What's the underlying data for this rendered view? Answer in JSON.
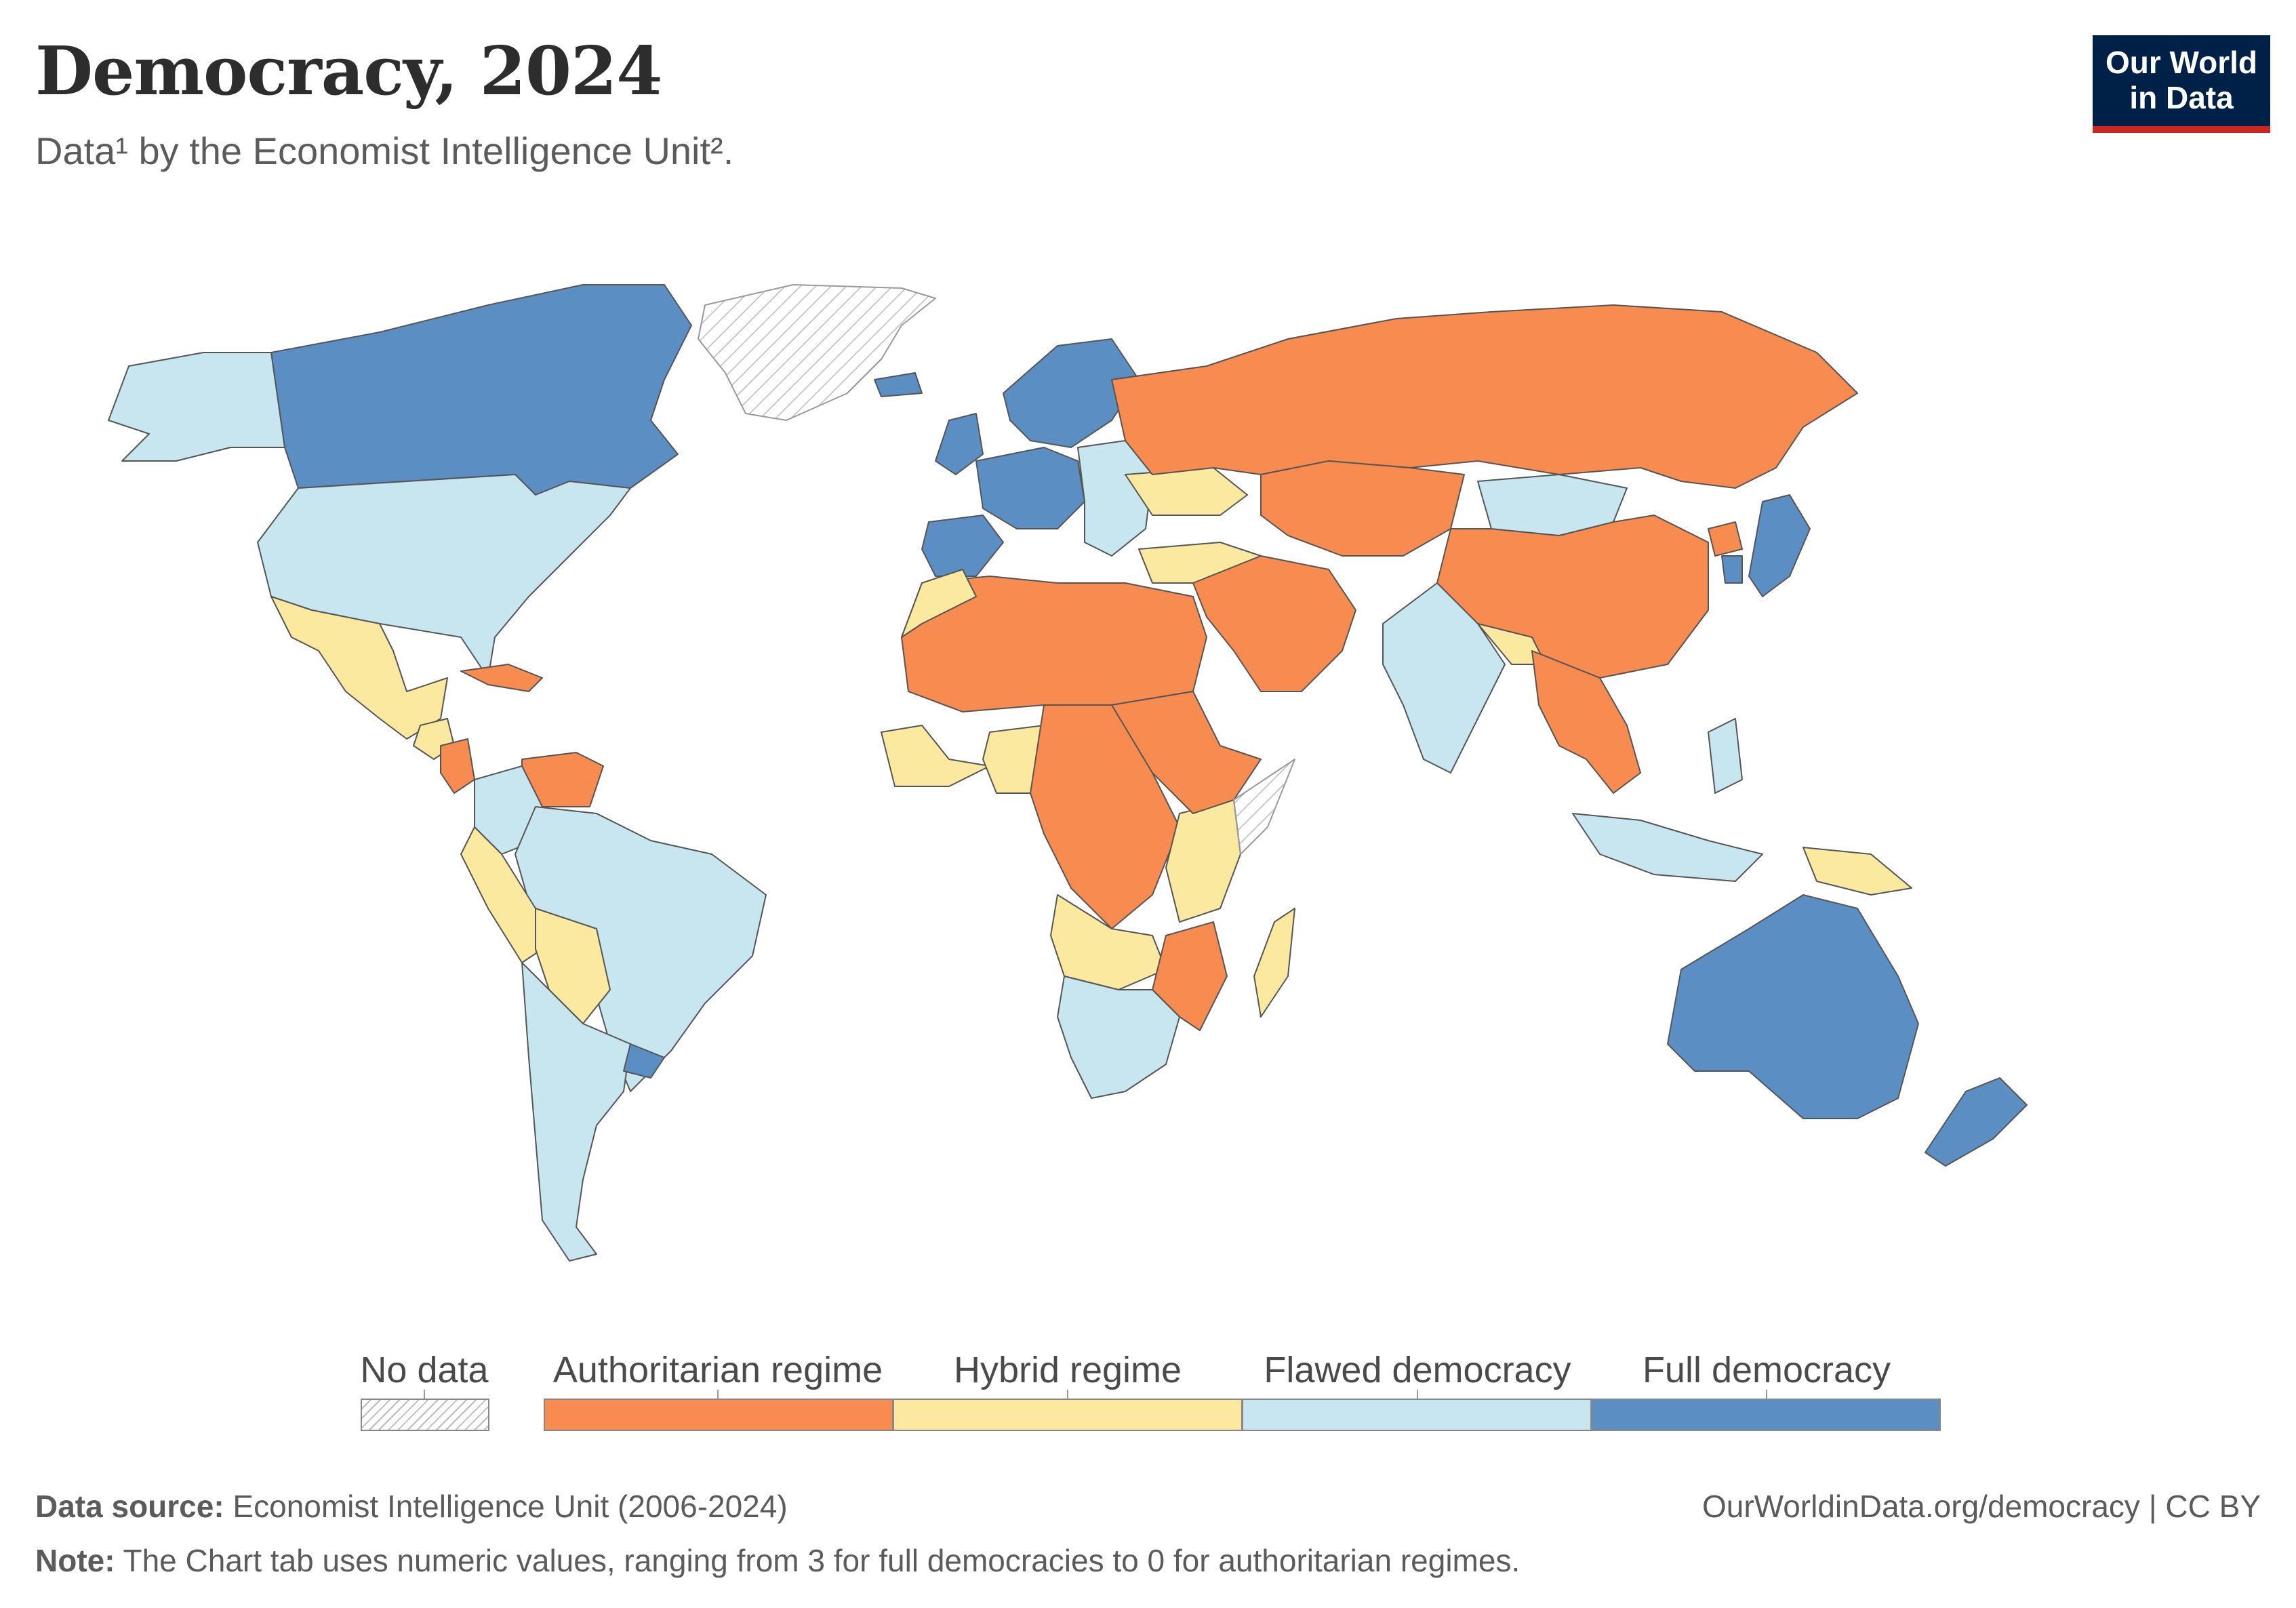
{
  "header": {
    "title": "Democracy, 2024",
    "subtitle": "Data¹ by the Economist Intelligence Unit².",
    "logo_line1": "Our World",
    "logo_line2": "in Data"
  },
  "colors": {
    "no_data": "#ffffff",
    "authoritarian": "#f78b50",
    "hybrid": "#fbe9a0",
    "flawed": "#c8e6f0",
    "full": "#5b8fc4",
    "border": "#555555",
    "hatch": "#bbbbbb"
  },
  "legend": [
    {
      "key": "no_data",
      "label": "No data"
    },
    {
      "key": "authoritarian",
      "label": "Authoritarian regime"
    },
    {
      "key": "hybrid",
      "label": "Hybrid regime"
    },
    {
      "key": "flawed",
      "label": "Flawed democracy"
    },
    {
      "key": "full",
      "label": "Full democracy"
    }
  ],
  "footer": {
    "source_label": "Data source:",
    "source_text": " Economist Intelligence Unit (2006-2024)",
    "note_label": "Note:",
    "note_text": " The Chart tab uses numeric values, ranging from 3 for full democracies to 0 for authoritarian regimes.",
    "url": "OurWorldinData.org/democracy | CC BY"
  },
  "regions": [
    {
      "id": "greenland",
      "regime": "no_data"
    },
    {
      "id": "canada",
      "regime": "full"
    },
    {
      "id": "alaska",
      "regime": "flawed"
    },
    {
      "id": "usa",
      "regime": "flawed"
    },
    {
      "id": "mexico",
      "regime": "hybrid"
    },
    {
      "id": "cuba",
      "regime": "authoritarian"
    },
    {
      "id": "central-america",
      "regime": "hybrid"
    },
    {
      "id": "nicaragua",
      "regime": "authoritarian"
    },
    {
      "id": "venezuela",
      "regime": "authoritarian"
    },
    {
      "id": "colombia",
      "regime": "flawed"
    },
    {
      "id": "brazil",
      "regime": "flawed"
    },
    {
      "id": "peru",
      "regime": "hybrid"
    },
    {
      "id": "bolivia",
      "regime": "hybrid"
    },
    {
      "id": "chile-argentina",
      "regime": "flawed"
    },
    {
      "id": "uruguay",
      "regime": "full"
    },
    {
      "id": "iceland",
      "regime": "full"
    },
    {
      "id": "uk",
      "regime": "full"
    },
    {
      "id": "scandinavia",
      "regime": "full"
    },
    {
      "id": "western-europe",
      "regime": "full"
    },
    {
      "id": "iberia",
      "regime": "full"
    },
    {
      "id": "central-europe",
      "regime": "flawed"
    },
    {
      "id": "ukraine",
      "regime": "hybrid"
    },
    {
      "id": "turkey",
      "regime": "hybrid"
    },
    {
      "id": "russia",
      "regime": "authoritarian"
    },
    {
      "id": "central-asia",
      "regime": "authoritarian"
    },
    {
      "id": "china",
      "regime": "authoritarian"
    },
    {
      "id": "mongolia",
      "regime": "flawed"
    },
    {
      "id": "middle-east",
      "regime": "authoritarian"
    },
    {
      "id": "india",
      "regime": "flawed"
    },
    {
      "id": "bangladesh-nepal",
      "regime": "hybrid"
    },
    {
      "id": "southeast-asia",
      "regime": "authoritarian"
    },
    {
      "id": "japan",
      "regime": "full"
    },
    {
      "id": "korea",
      "regime": "full"
    },
    {
      "id": "north-korea",
      "regime": "authoritarian"
    },
    {
      "id": "indonesia",
      "regime": "flawed"
    },
    {
      "id": "philippines",
      "regime": "flawed"
    },
    {
      "id": "papua",
      "regime": "hybrid"
    },
    {
      "id": "australia",
      "regime": "full"
    },
    {
      "id": "new-zealand",
      "regime": "full"
    },
    {
      "id": "north-africa",
      "regime": "authoritarian"
    },
    {
      "id": "morocco",
      "regime": "hybrid"
    },
    {
      "id": "west-africa-coast",
      "regime": "hybrid"
    },
    {
      "id": "nigeria",
      "regime": "hybrid"
    },
    {
      "id": "central-africa",
      "regime": "authoritarian"
    },
    {
      "id": "east-africa",
      "regime": "hybrid"
    },
    {
      "id": "ethiopia-sudan",
      "regime": "authoritarian"
    },
    {
      "id": "somalia",
      "regime": "no_data"
    },
    {
      "id": "angola-zambia",
      "regime": "hybrid"
    },
    {
      "id": "mozambique-zimbabwe",
      "regime": "authoritarian"
    },
    {
      "id": "southern-africa",
      "regime": "flawed"
    },
    {
      "id": "madagascar",
      "regime": "hybrid"
    }
  ]
}
